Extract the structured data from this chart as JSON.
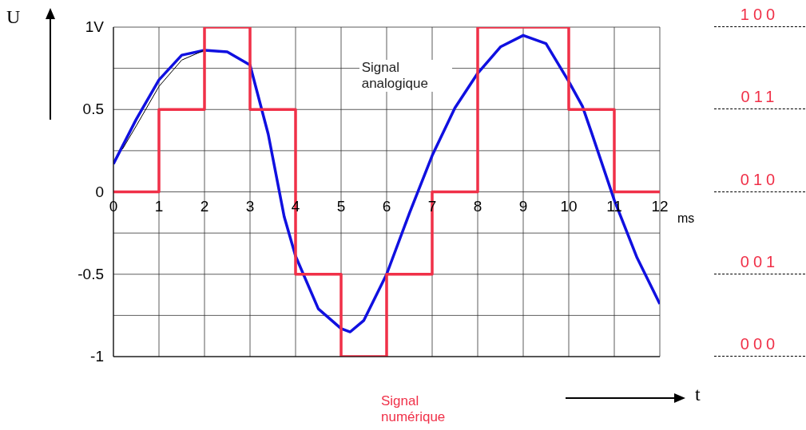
{
  "chart_data": {
    "type": "line",
    "xlabel": "t",
    "ylabel": "U",
    "x": [
      0,
      1,
      2,
      3,
      4,
      5,
      6,
      7,
      8,
      9,
      10,
      11,
      12
    ],
    "xlim": [
      0,
      12
    ],
    "xticks": [
      0,
      1,
      2,
      3,
      4,
      5,
      6,
      7,
      8,
      9,
      10,
      11,
      12
    ],
    "ylim": [
      -1,
      1
    ],
    "yticks": [
      -1,
      {
        "value": -0.75,
        "label": null
      },
      -0.5,
      {
        "value": -0.25,
        "label": null
      },
      0,
      {
        "value": 0.25,
        "label": null
      },
      0.5,
      {
        "value": 0.75,
        "label": null
      },
      {
        "value": 1,
        "label": "1V"
      }
    ],
    "series": [
      {
        "name": "Signal analogique",
        "color": "#1010e0",
        "x": [
          0,
          0.5,
          1,
          1.5,
          2,
          2.5,
          3,
          3.4,
          3.75,
          4,
          4.5,
          5,
          5.2,
          5.5,
          6,
          6.5,
          7,
          7.5,
          8,
          8.5,
          9,
          9.5,
          10,
          10.3,
          10.5,
          11,
          11.5,
          12
        ],
        "values": [
          0.17,
          0.44,
          0.68,
          0.83,
          0.86,
          0.85,
          0.77,
          0.35,
          -0.15,
          -0.39,
          -0.71,
          -0.83,
          -0.85,
          -0.78,
          -0.5,
          -0.13,
          0.22,
          0.51,
          0.72,
          0.88,
          0.95,
          0.9,
          0.67,
          0.52,
          0.36,
          -0.05,
          -0.4,
          -0.68
        ]
      },
      {
        "color": "#000000",
        "x": [
          0.2,
          0.5,
          1,
          1.5,
          2
        ],
        "values": [
          0.26,
          0.4,
          0.64,
          0.8,
          0.86
        ]
      },
      {
        "name": "Signal numérique",
        "type": "step",
        "color": "#f03048",
        "values": [
          0,
          0.5,
          1,
          0.5,
          -0.5,
          -1,
          -0.5,
          0,
          1,
          1,
          0.5,
          0,
          0
        ]
      }
    ],
    "annotations": [
      "ms",
      "100",
      "011",
      "010",
      "001",
      "000"
    ],
    "grid": true,
    "marker": "none",
    "line_style": "solid"
  }
}
